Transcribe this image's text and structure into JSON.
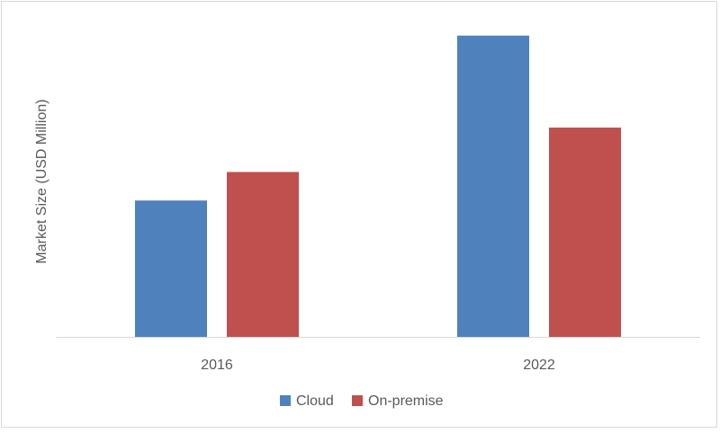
{
  "chart_data": {
    "type": "bar",
    "title": "",
    "xlabel": "",
    "ylabel": "Market Size (USD Million)",
    "categories": [
      "2016",
      "2022"
    ],
    "series": [
      {
        "name": "Cloud",
        "color": "#4f81bd",
        "values": [
          43,
          95
        ]
      },
      {
        "name": "On-premise",
        "color": "#c0504d",
        "values": [
          52,
          66
        ]
      }
    ],
    "ylim": [
      0,
      100
    ],
    "grid": false,
    "legend_position": "bottom"
  }
}
